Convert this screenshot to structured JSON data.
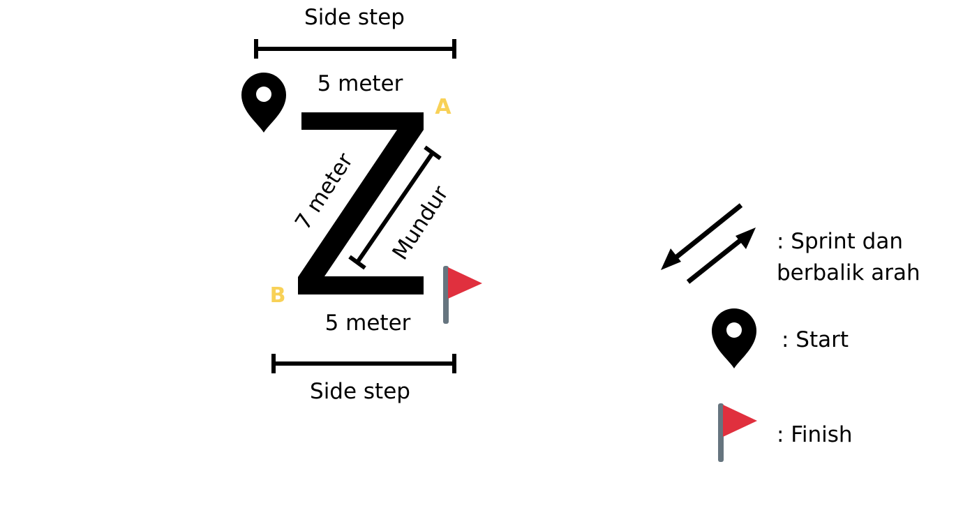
{
  "diagram": {
    "top_label": "Side step",
    "top_distance": "5 meter",
    "diagonal_distance": "7 meter",
    "diagonal_motion": "Mundur",
    "bottom_distance": "5 meter",
    "bottom_label": "Side step",
    "point_a": "A",
    "point_b": "B",
    "letter_shape": "Z",
    "start_icon": "map-pin-icon",
    "finish_icon": "red-flag-icon"
  },
  "legend": {
    "sprint_line1": ": Sprint dan",
    "sprint_line2": "berbalik arah",
    "start": ": Start",
    "finish": ": Finish"
  },
  "colors": {
    "corner_label": "#f8d157",
    "flag_red": "#e0303e",
    "flag_pole": "#66757f",
    "ink": "#000000"
  }
}
